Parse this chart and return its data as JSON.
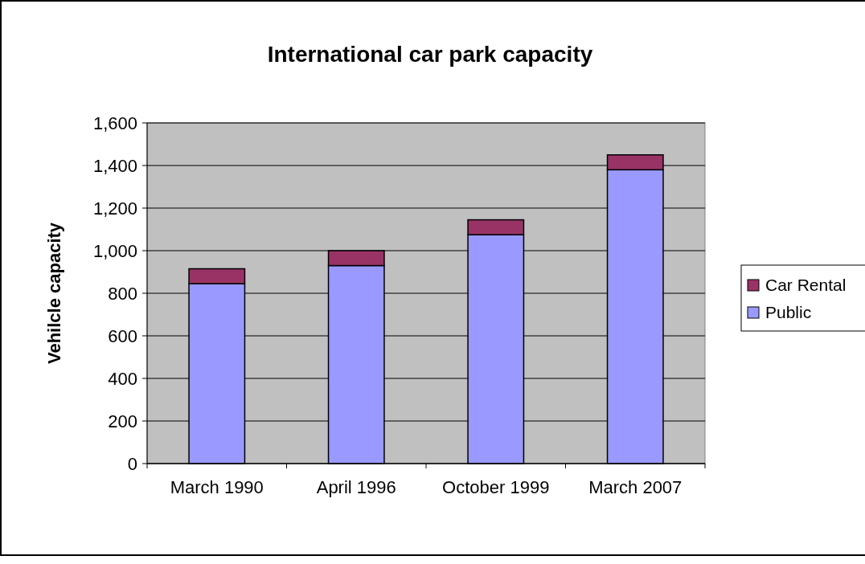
{
  "chart_data": {
    "type": "bar",
    "title": "International car park capacity",
    "ylabel": "Vehilcle capacity",
    "categories": [
      "March 1990",
      "April 1996",
      "October 1999",
      "March 2007"
    ],
    "stacked": true,
    "series": [
      {
        "name": "Public",
        "color": "#9999ff",
        "values": [
          845,
          930,
          1075,
          1380
        ]
      },
      {
        "name": "Car Rental",
        "color": "#993366",
        "values": [
          70,
          70,
          70,
          70
        ]
      }
    ],
    "ylim": [
      0,
      1600
    ],
    "yticks": [
      {
        "value": 0,
        "label": "0"
      },
      {
        "value": 200,
        "label": "200"
      },
      {
        "value": 400,
        "label": "400"
      },
      {
        "value": 600,
        "label": "600"
      },
      {
        "value": 800,
        "label": "800"
      },
      {
        "value": 1000,
        "label": "1,000"
      },
      {
        "value": 1200,
        "label": "1,200"
      },
      {
        "value": 1400,
        "label": "1,400"
      },
      {
        "value": 1600,
        "label": "1,600"
      }
    ],
    "grid": "y",
    "legend": "right"
  }
}
